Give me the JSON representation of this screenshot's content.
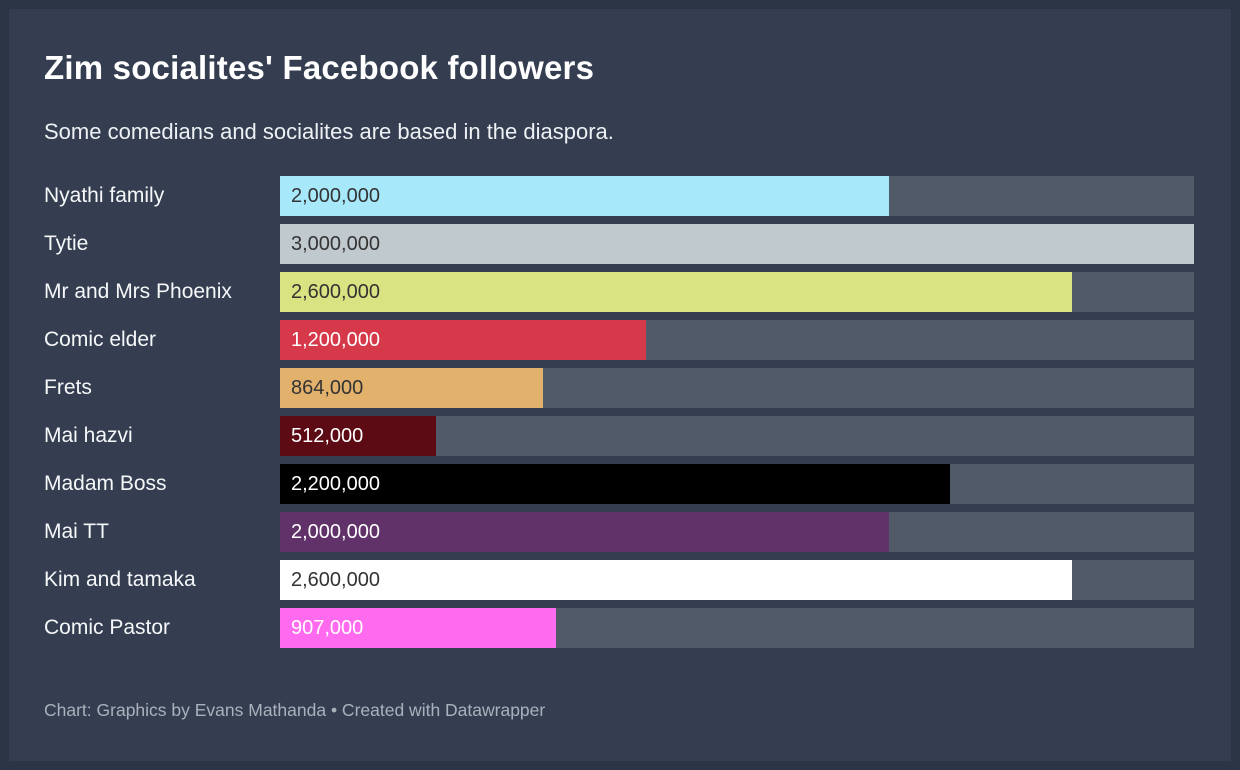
{
  "colors": {
    "background": "#343e50",
    "border": "#2b3444",
    "track": "#515a68",
    "title_text": "#ffffff",
    "subtitle_text": "#eef1f4",
    "label_text": "#f5f7f9",
    "footer_text": "#a9b1bc",
    "value_dark": "#333333",
    "value_light": "#ffffff"
  },
  "chart_data": {
    "type": "bar",
    "orientation": "horizontal",
    "title": "Zim socialites' Facebook followers",
    "subtitle": "Some comedians and socialites are based in the diaspora.",
    "footer": "Chart: Graphics by Evans Mathanda • Created with Datawrapper",
    "axis_min": 0,
    "axis_max": 3000000,
    "grid": false,
    "legend": false,
    "value_labels_inside_bars": true,
    "categories": [
      "Nyathi family",
      "Tytie",
      "Mr and Mrs Phoenix",
      "Comic elder",
      "Frets",
      "Mai hazvi",
      "Madam Boss",
      "Mai TT",
      "Kim and tamaka",
      "Comic Pastor"
    ],
    "values": [
      2000000,
      3000000,
      2600000,
      1200000,
      864000,
      512000,
      2200000,
      2000000,
      2600000,
      907000
    ],
    "rows": [
      {
        "label": "Nyathi family",
        "value": 2000000,
        "value_label": "2,000,000",
        "bar_color": "#a7e8fb",
        "value_text": "dark"
      },
      {
        "label": "Tytie",
        "value": 3000000,
        "value_label": "3,000,000",
        "bar_color": "#c0c9ce",
        "value_text": "dark"
      },
      {
        "label": "Mr and Mrs Phoenix",
        "value": 2600000,
        "value_label": "2,600,000",
        "bar_color": "#d9e382",
        "value_text": "dark"
      },
      {
        "label": "Comic elder",
        "value": 1200000,
        "value_label": "1,200,000",
        "bar_color": "#d63a4a",
        "value_text": "light"
      },
      {
        "label": "Frets",
        "value": 864000,
        "value_label": "864,000",
        "bar_color": "#e2b16c",
        "value_text": "dark"
      },
      {
        "label": "Mai hazvi",
        "value": 512000,
        "value_label": "512,000",
        "bar_color": "#5c0a14",
        "value_text": "light"
      },
      {
        "label": "Madam Boss",
        "value": 2200000,
        "value_label": "2,200,000",
        "bar_color": "#000000",
        "value_text": "light"
      },
      {
        "label": "Mai TT",
        "value": 2000000,
        "value_label": "2,000,000",
        "bar_color": "#613269",
        "value_text": "light"
      },
      {
        "label": "Kim and tamaka",
        "value": 2600000,
        "value_label": "2,600,000",
        "bar_color": "#ffffff",
        "value_text": "dark"
      },
      {
        "label": "Comic Pastor",
        "value": 907000,
        "value_label": "907,000",
        "bar_color": "#ff6aee",
        "value_text": "light"
      }
    ]
  }
}
